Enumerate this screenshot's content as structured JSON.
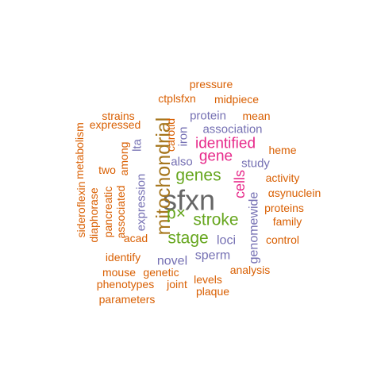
{
  "palette": {
    "orange": "#D95F02",
    "purple": "#7570B3",
    "magenta": "#E7298A",
    "green": "#66A61E",
    "gold": "#A6761D",
    "gray": "#666666"
  },
  "words": [
    {
      "text": "sfxn",
      "color": "gray"
    },
    {
      "text": "mitochondrial",
      "color": "gold"
    },
    {
      "text": "stroke",
      "color": "green"
    },
    {
      "text": "genes",
      "color": "green"
    },
    {
      "text": "stage",
      "color": "green"
    },
    {
      "text": "p×",
      "color": "green"
    },
    {
      "text": "identified",
      "color": "magenta"
    },
    {
      "text": "gene",
      "color": "magenta"
    },
    {
      "text": "cells",
      "color": "magenta"
    },
    {
      "text": "genomewide",
      "color": "purple"
    },
    {
      "text": "expression",
      "color": "purple"
    },
    {
      "text": "loci",
      "color": "purple"
    },
    {
      "text": "sperm",
      "color": "purple"
    },
    {
      "text": "novel",
      "color": "purple"
    },
    {
      "text": "association",
      "color": "purple"
    },
    {
      "text": "protein",
      "color": "purple"
    },
    {
      "text": "also",
      "color": "purple"
    },
    {
      "text": "study",
      "color": "purple"
    },
    {
      "text": "iron",
      "color": "purple"
    },
    {
      "text": "lta",
      "color": "purple"
    },
    {
      "text": "pressure",
      "color": "orange"
    },
    {
      "text": "ctplsfxn",
      "color": "orange"
    },
    {
      "text": "midpiece",
      "color": "orange"
    },
    {
      "text": "strains",
      "color": "orange"
    },
    {
      "text": "mean",
      "color": "orange"
    },
    {
      "text": "expressed",
      "color": "orange"
    },
    {
      "text": "carotid",
      "color": "orange"
    },
    {
      "text": "heme",
      "color": "orange"
    },
    {
      "text": "metabolism",
      "color": "orange"
    },
    {
      "text": "among",
      "color": "orange"
    },
    {
      "text": "two",
      "color": "orange"
    },
    {
      "text": "activity",
      "color": "orange"
    },
    {
      "text": "αsynuclein",
      "color": "orange"
    },
    {
      "text": "sideroflexin",
      "color": "orange"
    },
    {
      "text": "diaphorase",
      "color": "orange"
    },
    {
      "text": "pancreatic",
      "color": "orange"
    },
    {
      "text": "associated",
      "color": "orange"
    },
    {
      "text": "proteins",
      "color": "orange"
    },
    {
      "text": "family",
      "color": "orange"
    },
    {
      "text": "acad",
      "color": "orange"
    },
    {
      "text": "control",
      "color": "orange"
    },
    {
      "text": "identify",
      "color": "orange"
    },
    {
      "text": "analysis",
      "color": "orange"
    },
    {
      "text": "mouse",
      "color": "orange"
    },
    {
      "text": "genetic",
      "color": "orange"
    },
    {
      "text": "levels",
      "color": "orange"
    },
    {
      "text": "phenotypes",
      "color": "orange"
    },
    {
      "text": "joint",
      "color": "orange"
    },
    {
      "text": "plaque",
      "color": "orange"
    },
    {
      "text": "parameters",
      "color": "orange"
    }
  ]
}
